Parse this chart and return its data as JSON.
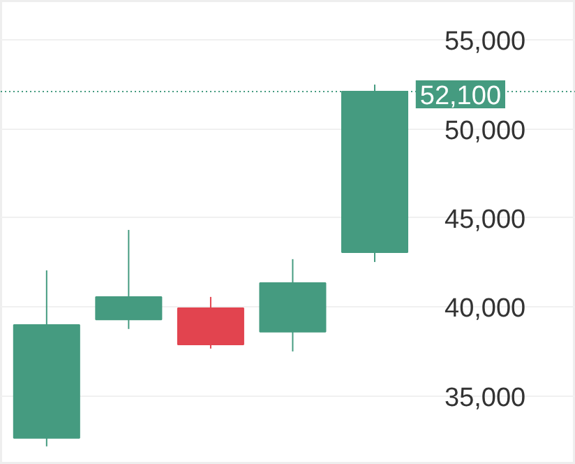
{
  "chart_data": {
    "type": "candlestick",
    "categories": [
      null,
      null,
      null,
      null,
      null
    ],
    "ohlc": [
      [
        32650,
        42060,
        32180,
        39000
      ],
      [
        39300,
        44330,
        38770,
        40570
      ],
      [
        39940,
        40570,
        37670,
        37900
      ],
      [
        38610,
        42690,
        37510,
        41350
      ],
      [
        43080,
        52490,
        42530,
        52100
      ]
    ],
    "colors": [
      "#459b80",
      "#459b80",
      "#e2444f",
      "#459b80",
      "#459b80"
    ],
    "ylim": [
      31150,
      57200
    ],
    "yticks": [
      {
        "value": 35000,
        "label": "35,000"
      },
      {
        "value": 40000,
        "label": "40,000"
      },
      {
        "value": 45000,
        "label": "45,000"
      },
      {
        "value": 50000,
        "label": "50,000"
      },
      {
        "value": 55000,
        "label": "55,000"
      }
    ],
    "grid": "y",
    "tick_labels": "y",
    "ref_lines": [
      {
        "axis": "y",
        "value": 52100,
        "label": "52,100",
        "color": "#459b80",
        "line_style": "dotted"
      }
    ]
  }
}
